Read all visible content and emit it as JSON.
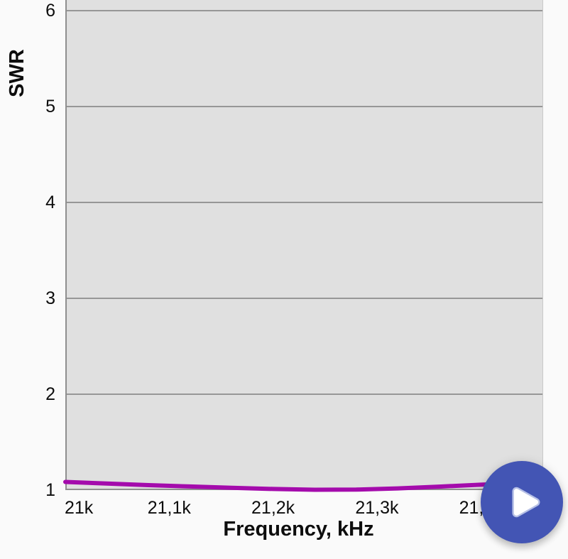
{
  "page": {
    "background": "#fafafa"
  },
  "chart_data": {
    "type": "line",
    "title": "",
    "xlabel": "Frequency, kHz",
    "ylabel": "SWR",
    "xlim": [
      21000,
      21460
    ],
    "ylim_visible": [
      1,
      6.11
    ],
    "grid": "horizontal",
    "gridline_color": "#979797",
    "plot_background": "#e0e0e0",
    "x_ticks": [
      {
        "value": 21000,
        "label": "21k"
      },
      {
        "value": 21100,
        "label": "21,1k"
      },
      {
        "value": 21200,
        "label": "21,2k"
      },
      {
        "value": 21300,
        "label": "21,3k"
      },
      {
        "value": 21400,
        "label": "21,4k"
      }
    ],
    "y_ticks": [
      {
        "value": 1,
        "label": "1"
      },
      {
        "value": 2,
        "label": "2"
      },
      {
        "value": 3,
        "label": "3"
      },
      {
        "value": 4,
        "label": "4"
      },
      {
        "value": 5,
        "label": "5"
      },
      {
        "value": 6,
        "label": "6"
      }
    ],
    "series": [
      {
        "name": "SWR",
        "color": "#a40bac",
        "x": [
          21000,
          21040,
          21080,
          21120,
          21160,
          21200,
          21240,
          21280,
          21320,
          21360,
          21400,
          21430,
          21460
        ],
        "y": [
          1.085,
          1.068,
          1.052,
          1.038,
          1.024,
          1.012,
          1.004,
          1.005,
          1.018,
          1.036,
          1.056,
          1.068,
          1.078
        ]
      }
    ]
  },
  "fab": {
    "icon": "play-icon",
    "color": "#4355b4",
    "play_glyph_color": "#ffffff",
    "play_halo_color": "#b6c0e6"
  }
}
